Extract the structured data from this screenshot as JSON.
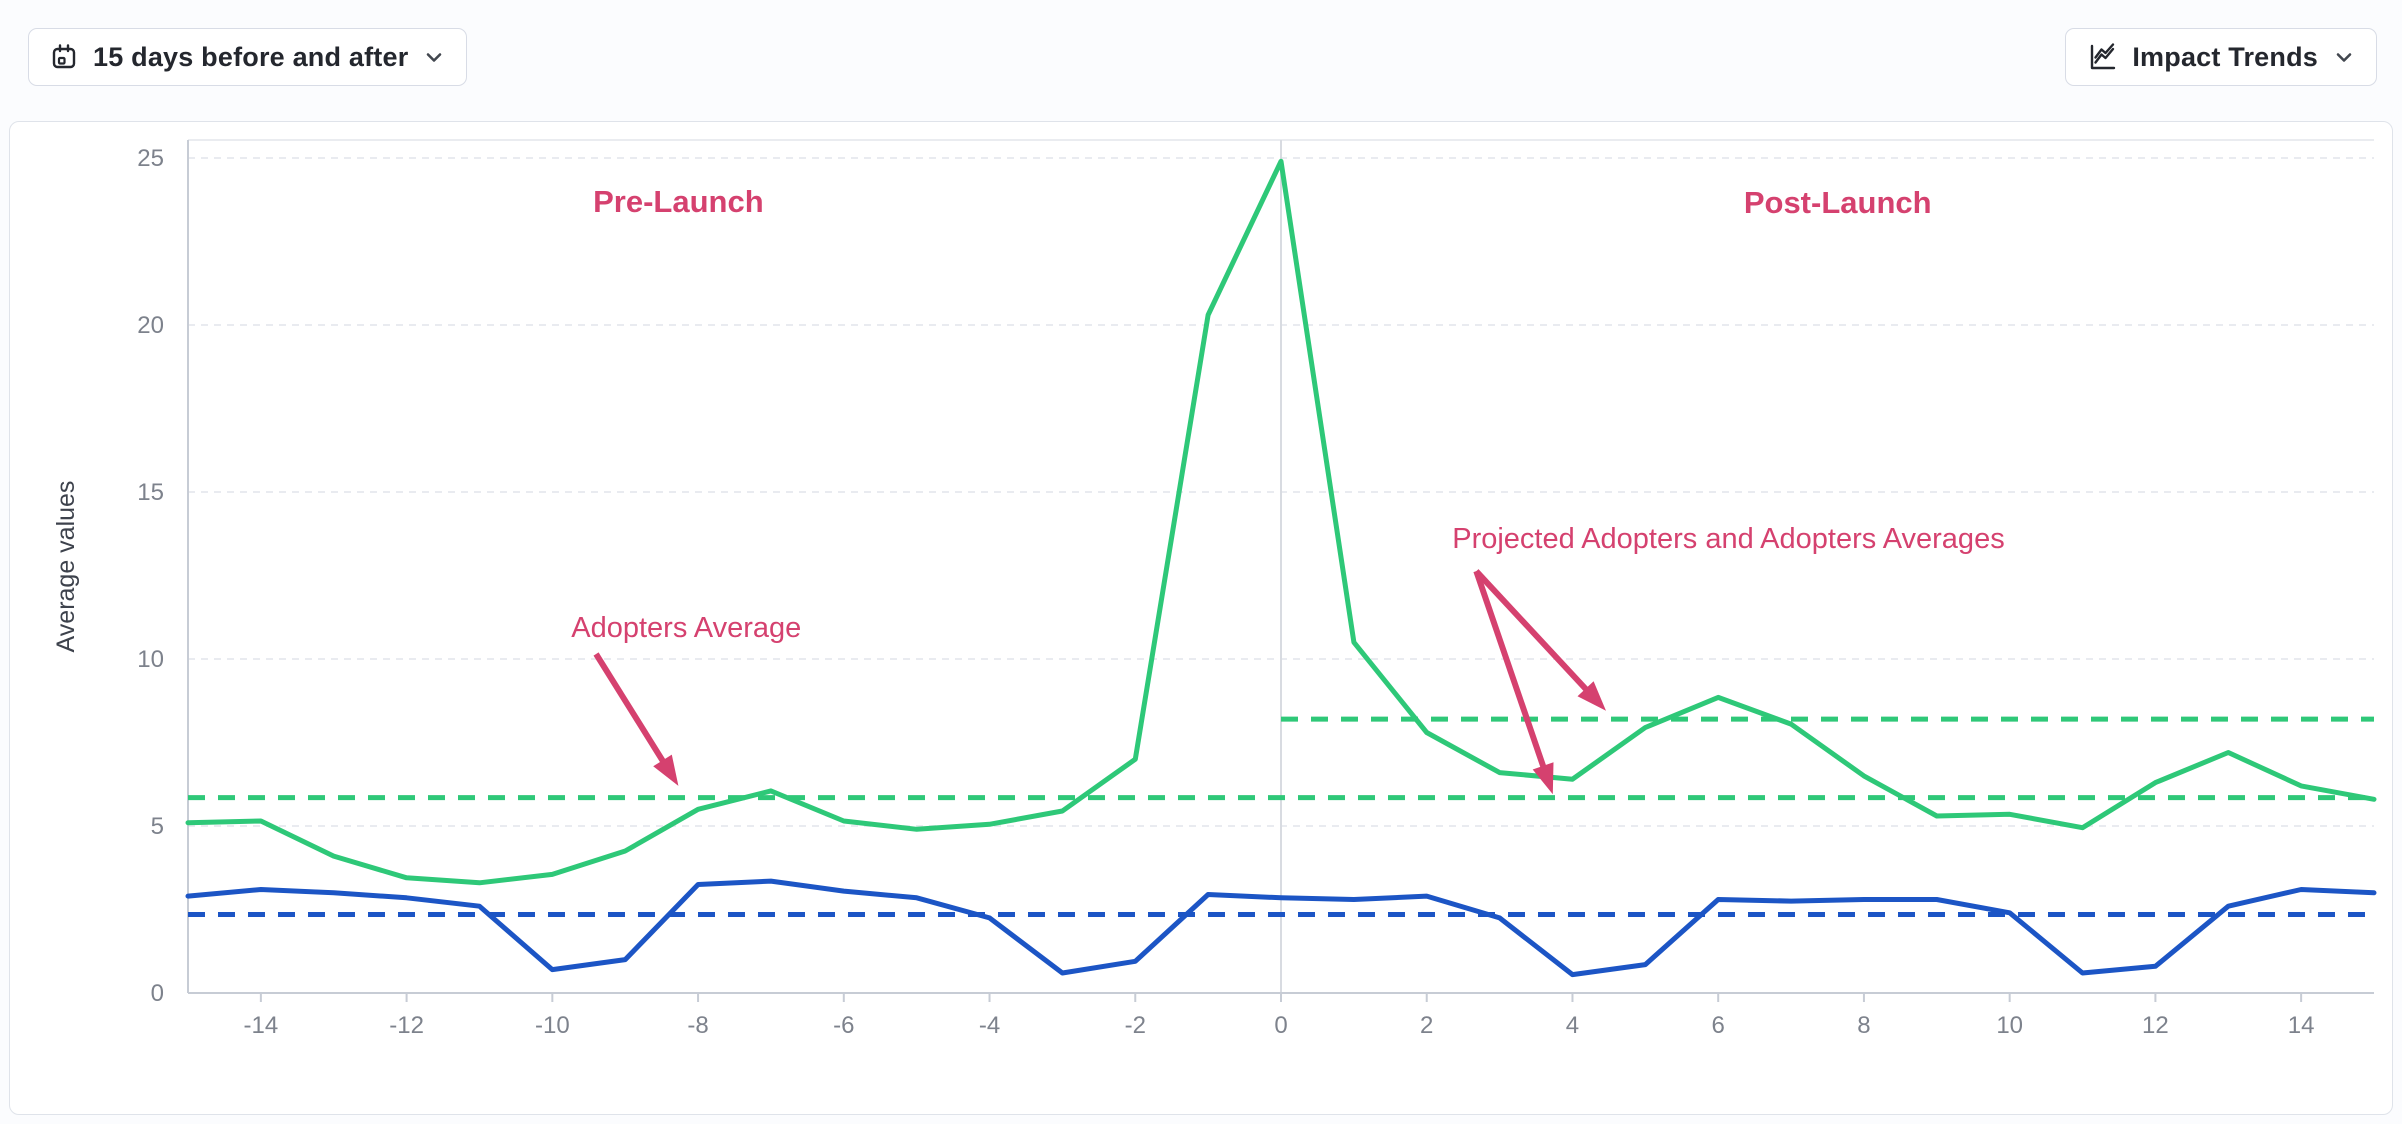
{
  "header": {
    "date_range_button": {
      "label": "15 days before and after",
      "icon": "calendar-icon",
      "chevron_icon": "chevron-down-icon"
    },
    "trends_button": {
      "label": "Impact Trends",
      "icon": "line-chart-icon",
      "chevron_icon": "chevron-down-icon"
    }
  },
  "chart_data": {
    "type": "line",
    "title": "",
    "xlabel": "",
    "ylabel": "Average values",
    "x": [
      -15,
      -14,
      -13,
      -12,
      -11,
      -10,
      -9,
      -8,
      -7,
      -6,
      -5,
      -4,
      -3,
      -2,
      -1,
      0,
      1,
      2,
      3,
      4,
      5,
      6,
      7,
      8,
      9,
      10,
      11,
      12,
      13,
      14,
      15
    ],
    "x_tick_labels": [
      -14,
      -12,
      -10,
      -8,
      -6,
      -4,
      -2,
      0,
      2,
      4,
      6,
      8,
      10,
      12,
      14
    ],
    "y_tick_labels": [
      0,
      5,
      10,
      15,
      20,
      25
    ],
    "ylim": [
      0,
      26.2
    ],
    "grid": true,
    "launch_divider_x": 0,
    "series": [
      {
        "name": "Adopters",
        "color": "#2ec878",
        "style": "solid",
        "values": [
          5.1,
          5.15,
          4.1,
          3.45,
          3.3,
          3.55,
          4.25,
          5.5,
          6.05,
          5.15,
          4.9,
          5.05,
          5.45,
          7.0,
          20.3,
          24.9,
          10.5,
          7.8,
          6.6,
          6.4,
          7.95,
          8.85,
          8.05,
          6.5,
          5.3,
          5.35,
          4.95,
          6.3,
          7.2,
          6.2,
          5.8
        ]
      },
      {
        "name": "Projected Adopters",
        "color": "#1c55c5",
        "style": "solid",
        "values": [
          2.9,
          3.1,
          3.0,
          2.85,
          2.6,
          0.7,
          1.0,
          3.25,
          3.35,
          3.05,
          2.85,
          2.25,
          0.6,
          0.95,
          2.95,
          2.85,
          2.8,
          2.9,
          2.25,
          0.55,
          0.85,
          2.8,
          2.75,
          2.8,
          2.8,
          2.4,
          0.6,
          0.8,
          2.6,
          3.1,
          3.0
        ]
      }
    ],
    "reference_lines": [
      {
        "name": "adopters-average-pre-launch",
        "value": 5.85,
        "from": -15,
        "to": 15,
        "color": "#2ec878",
        "style": "dashed"
      },
      {
        "name": "adopters-average-post-launch",
        "value": 8.2,
        "from": 0,
        "to": 15,
        "color": "#2ec878",
        "style": "dashed"
      },
      {
        "name": "projected-adopters-average",
        "value": 2.35,
        "from": -15,
        "to": 15,
        "color": "#1c55c5",
        "style": "dashed"
      }
    ],
    "annotations": [
      {
        "id": "pre-launch-label",
        "text": "Pre-Launch",
        "bold": true,
        "anchor": "middle",
        "day": -8.27,
        "value": 23.65,
        "arrows": []
      },
      {
        "id": "post-launch-label",
        "text": "Post-Launch",
        "bold": true,
        "anchor": "middle",
        "day": 7.64,
        "value": 23.62,
        "arrows": []
      },
      {
        "id": "adopters-average-label",
        "text": "Adopters Average",
        "bold": false,
        "anchor": "start",
        "day": -9.74,
        "value": 10.93,
        "arrows": [
          {
            "from_day": -9.4,
            "from_value": 10.15,
            "to_day": -8.27,
            "to_value": 6.2
          }
        ]
      },
      {
        "id": "projected-adopters-averages-label",
        "text": "Projected Adopters and Adopters Averages",
        "bold": false,
        "anchor": "start",
        "day": 2.35,
        "value": 13.59,
        "arrows": [
          {
            "from_day": 2.68,
            "from_value": 12.63,
            "to_day": 4.46,
            "to_value": 8.45
          },
          {
            "from_day": 2.68,
            "from_value": 12.63,
            "to_day": 3.73,
            "to_value": 5.95
          }
        ]
      }
    ],
    "colors": {
      "annotation": "#d5416f",
      "grid": "#e9ebf0",
      "axis": "#c7ccd5",
      "divider": "#d8dbe1",
      "tick_text": "#7d828c",
      "axis_title_text": "#3d424c"
    }
  }
}
